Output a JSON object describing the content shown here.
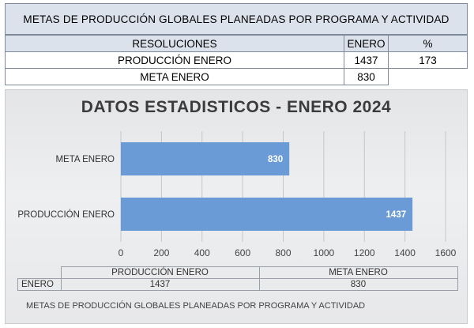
{
  "summary_table": {
    "title": "METAS DE PRODUCCIÓN GLOBALES PLANEADAS POR PROGRAMA Y ACTIVIDAD",
    "headers": [
      "RESOLUCIONES",
      "ENERO",
      "%"
    ],
    "rows": [
      [
        "PRODUCCIÓN ENERO",
        "1437",
        "173"
      ],
      [
        "META ENERO",
        "830",
        ""
      ]
    ]
  },
  "chart_data": {
    "type": "bar",
    "orientation": "horizontal",
    "title": "DATOS ESTADISTICOS - ENERO 2024",
    "categories": [
      "META ENERO",
      "PRODUCCIÓN ENERO"
    ],
    "series": [
      {
        "values": [
          830,
          1437
        ],
        "color": "#6a9bd7"
      }
    ],
    "xlim": [
      0,
      1600
    ],
    "xticks": [
      0,
      200,
      400,
      600,
      800,
      1000,
      1200,
      1400,
      1600
    ],
    "grid": "vertical",
    "data_labels": true
  },
  "data_table": {
    "columns": [
      "PRODUCCIÓN ENERO",
      "META ENERO"
    ],
    "row_label": "ENERO",
    "values": [
      "1437",
      "830"
    ]
  },
  "footer": "METAS DE PRODUCCIÓN GLOBALES PLANEADAS POR PROGRAMA Y ACTIVIDAD"
}
